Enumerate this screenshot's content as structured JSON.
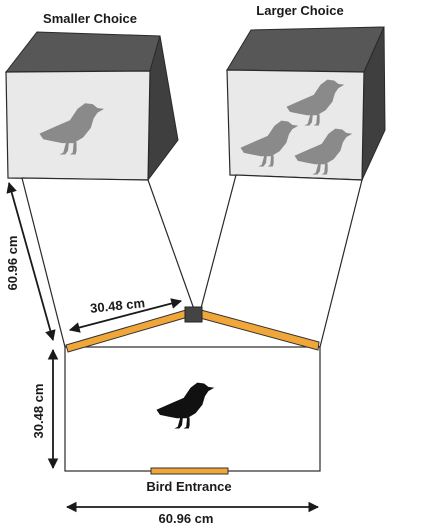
{
  "labels": {
    "smaller_choice": "Smaller Choice",
    "larger_choice": "Larger Choice",
    "bird_entrance": "Bird Entrance"
  },
  "dimensions": {
    "arm_length": "60.96 cm",
    "gate_width": "30.48 cm",
    "chamber_depth": "30.48 cm",
    "chamber_width": "60.96 cm"
  },
  "choices": {
    "smaller_bird_count": 1,
    "larger_bird_count": 3
  },
  "colors": {
    "gate": "#f1a63a",
    "box_top": "#575757",
    "box_side": "#3f3f3f",
    "box_front": "#e9e9e9",
    "reward_bird": "#8a8a8a",
    "test_bird": "#111111"
  },
  "icons": {
    "reward_bird": "crow-silhouette-grey",
    "test_bird": "crow-silhouette-black"
  }
}
